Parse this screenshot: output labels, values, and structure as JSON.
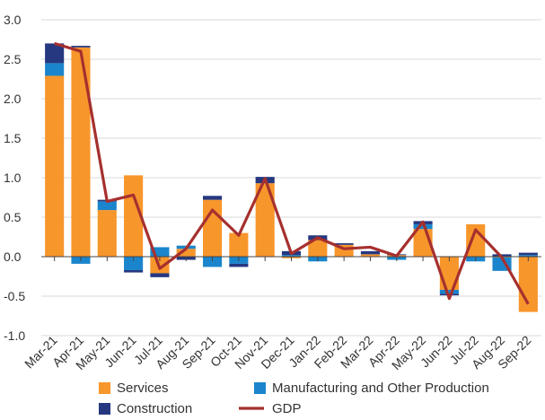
{
  "chart_data": {
    "type": "bar",
    "categories": [
      "Mar-21",
      "Apr-21",
      "May-21",
      "Jun-21",
      "Jul-21",
      "Aug-21",
      "Sep-21",
      "Oct-21",
      "Nov-21",
      "Dec-21",
      "Jan-22",
      "Feb-22",
      "Mar-22",
      "Apr-22",
      "May-22",
      "Jun-22",
      "Jul-22",
      "Aug-22",
      "Sep-22"
    ],
    "stacked": true,
    "ylim": [
      -1.0,
      3.0
    ],
    "yticks": [
      "3.0",
      "2.5",
      "2.0",
      "1.5",
      "1.0",
      "0.5",
      "0.0",
      "-0.5",
      "-1.0"
    ],
    "grid": "horizontal",
    "legend_position": "bottom",
    "series": [
      {
        "name": "Services",
        "color": "#F7962B",
        "values": [
          2.29,
          2.65,
          0.59,
          1.03,
          -0.21,
          0.1,
          0.72,
          0.3,
          0.93,
          -0.02,
          0.21,
          0.15,
          0.03,
          0.02,
          0.35,
          -0.42,
          0.41,
          -0.01,
          -0.7
        ]
      },
      {
        "name": "Manufacturing and Other Production",
        "color": "#1A85CC",
        "values": [
          0.16,
          -0.09,
          0.11,
          -0.17,
          0.12,
          0.04,
          -0.13,
          -0.09,
          0.0,
          0.02,
          -0.06,
          0.0,
          0.0,
          -0.04,
          0.06,
          -0.05,
          -0.06,
          -0.17,
          0.02
        ]
      },
      {
        "name": "Construction",
        "color": "#253880",
        "values": [
          0.25,
          0.02,
          0.02,
          -0.03,
          -0.05,
          -0.04,
          0.05,
          -0.04,
          0.08,
          0.05,
          0.06,
          0.02,
          0.04,
          0.01,
          0.04,
          -0.02,
          0.0,
          0.03,
          0.03
        ]
      }
    ],
    "line_series": {
      "name": "GDP",
      "color": "#A6302E",
      "values": [
        2.7,
        2.6,
        0.7,
        0.78,
        -0.15,
        0.1,
        0.59,
        0.27,
        0.99,
        0.04,
        0.24,
        0.1,
        0.12,
        0.01,
        0.44,
        -0.53,
        0.34,
        -0.01,
        -0.6
      ]
    },
    "legend": [
      "Services",
      "Manufacturing and Other Production",
      "Construction",
      "GDP"
    ]
  }
}
